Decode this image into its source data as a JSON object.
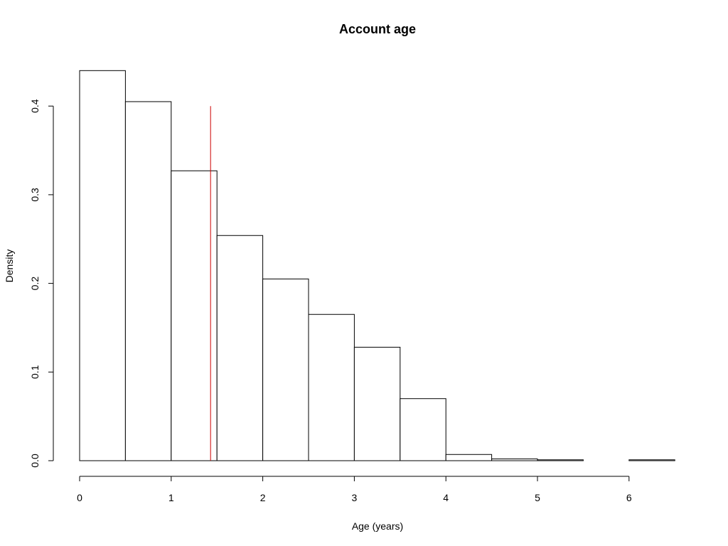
{
  "chart_data": {
    "type": "bar",
    "title": "Account age",
    "xlabel": "Age (years)",
    "ylabel": "Density",
    "xlim": [
      0,
      6.5
    ],
    "ylim": [
      0,
      0.44
    ],
    "bin_width": 0.5,
    "bins": [
      {
        "start": 0.0,
        "end": 0.5,
        "density": 0.44
      },
      {
        "start": 0.5,
        "end": 1.0,
        "density": 0.405
      },
      {
        "start": 1.0,
        "end": 1.5,
        "density": 0.327
      },
      {
        "start": 1.5,
        "end": 2.0,
        "density": 0.254
      },
      {
        "start": 2.0,
        "end": 2.5,
        "density": 0.205
      },
      {
        "start": 2.5,
        "end": 3.0,
        "density": 0.165
      },
      {
        "start": 3.0,
        "end": 3.5,
        "density": 0.128
      },
      {
        "start": 3.5,
        "end": 4.0,
        "density": 0.07
      },
      {
        "start": 4.0,
        "end": 4.5,
        "density": 0.007
      },
      {
        "start": 4.5,
        "end": 5.0,
        "density": 0.002
      },
      {
        "start": 5.0,
        "end": 5.5,
        "density": 0.001
      },
      {
        "start": 5.5,
        "end": 6.0,
        "density": 0.0
      },
      {
        "start": 6.0,
        "end": 6.5,
        "density": 0.001
      }
    ],
    "x_ticks": [
      0,
      1,
      2,
      3,
      4,
      5,
      6
    ],
    "x_tick_labels": [
      "0",
      "1",
      "2",
      "3",
      "4",
      "5",
      "6"
    ],
    "y_ticks": [
      0,
      0.1,
      0.2,
      0.3,
      0.4
    ],
    "y_tick_labels": [
      "0.0",
      "0.1",
      "0.2",
      "0.3",
      "0.4"
    ],
    "reference_line": {
      "x": 1.43,
      "y_range": [
        0,
        0.4
      ],
      "color": "#cc0000"
    },
    "grid": false,
    "legend": "none"
  }
}
